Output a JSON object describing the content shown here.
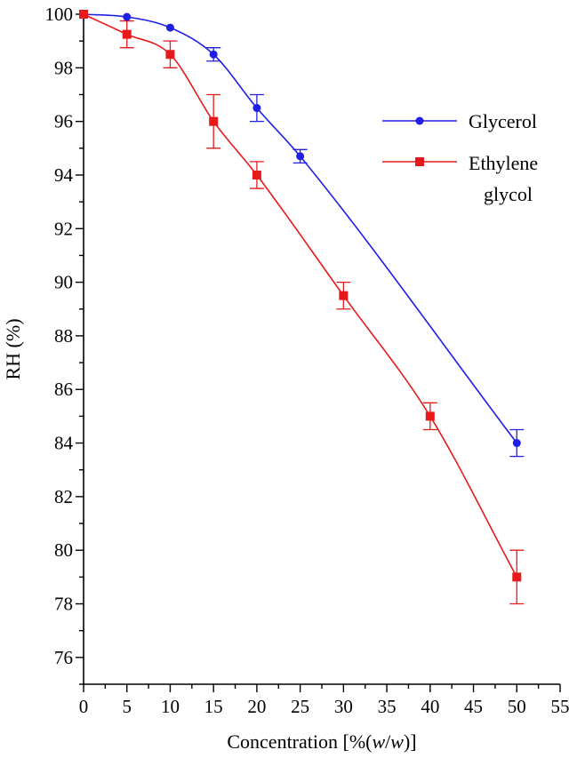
{
  "chart_data": {
    "type": "line",
    "xlabel": "Concentration [%(w/w)]",
    "xlabel_parts": {
      "prefix": "Concentration [%(",
      "italic1": "w",
      "slash": "/",
      "italic2": "w",
      "suffix": ")]"
    },
    "ylabel": "RH (%)",
    "xlim": [
      0,
      55
    ],
    "ylim": [
      75,
      100
    ],
    "x_ticks": [
      0,
      5,
      10,
      15,
      20,
      25,
      30,
      35,
      40,
      45,
      50,
      55
    ],
    "y_ticks": [
      76,
      78,
      80,
      82,
      84,
      86,
      88,
      90,
      92,
      94,
      96,
      98,
      100
    ],
    "grid": false,
    "legend_position": "top-right",
    "series": [
      {
        "name": "Glycerol",
        "color": "#1f1fe6",
        "marker": "circle",
        "x": [
          0,
          5,
          10,
          15,
          20,
          25,
          50
        ],
        "y": [
          100,
          99.9,
          99.5,
          98.5,
          96.5,
          94.7,
          84.0
        ],
        "error": [
          0,
          0,
          0,
          0.25,
          0.5,
          0.25,
          0.5
        ]
      },
      {
        "name": "Ethylene glycol",
        "legend_lines": [
          "Ethylene",
          "glycol"
        ],
        "color": "#e61a1a",
        "marker": "square",
        "x": [
          0,
          5,
          10,
          15,
          20,
          30,
          40,
          50
        ],
        "y": [
          100,
          99.25,
          98.5,
          96.0,
          94.0,
          89.5,
          85.0,
          79.0
        ],
        "error": [
          0,
          0.5,
          0.5,
          1.0,
          0.5,
          0.5,
          0.5,
          1.0
        ]
      }
    ]
  }
}
